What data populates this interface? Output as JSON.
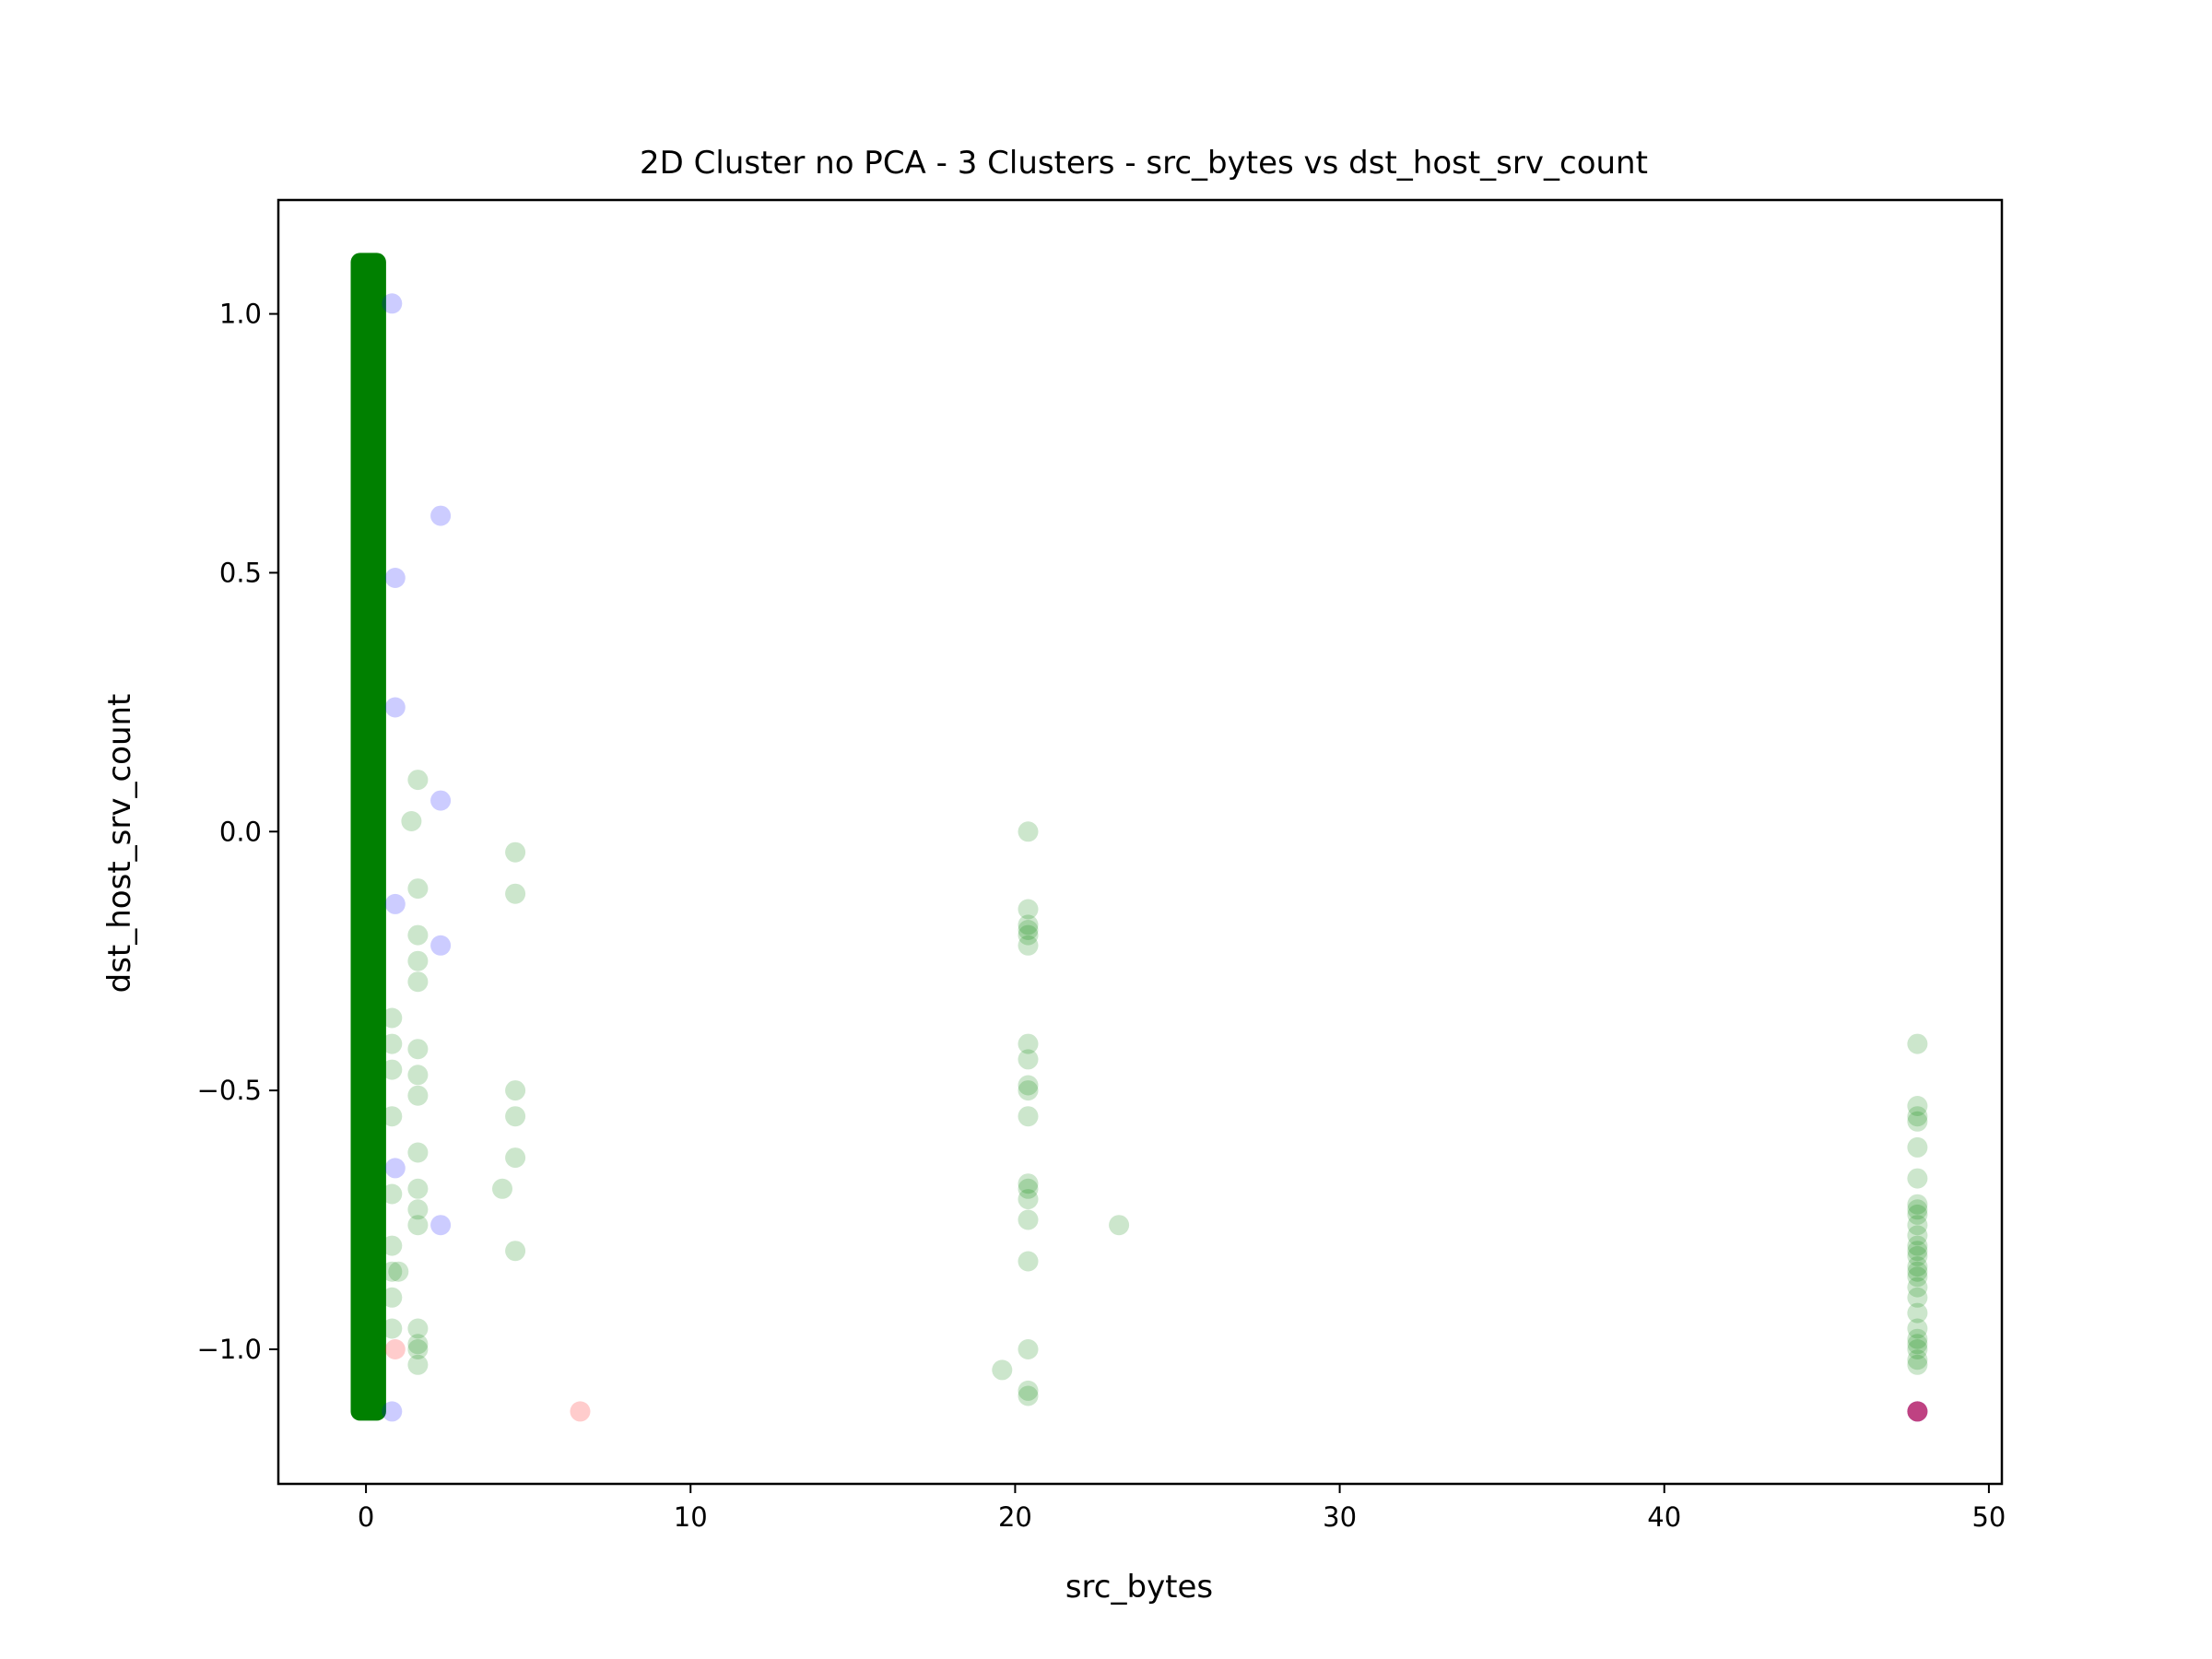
{
  "chart_data": {
    "type": "scatter",
    "title": "2D Cluster no PCA - 3 Clusters - src_bytes vs dst_host_srv_count",
    "xlabel": "src_bytes",
    "ylabel": "dst_host_srv_count",
    "xlim": [
      -2.7,
      50.4
    ],
    "ylim": [
      -1.26,
      1.22
    ],
    "xticks": [
      0,
      10,
      20,
      30,
      40,
      50
    ],
    "yticks": [
      -1.0,
      -0.5,
      0.0,
      0.5,
      1.0
    ],
    "xtick_labels": [
      "0",
      "10",
      "20",
      "30",
      "40",
      "50"
    ],
    "ytick_labels": [
      "−1.0",
      "−0.5",
      "0.0",
      "0.5",
      "1.0"
    ],
    "grid": false,
    "legend": "none",
    "series": [
      {
        "color": "#008000",
        "alpha": 0.2,
        "dense_band": {
          "x_min": -0.3,
          "x_max": 0.45,
          "y_min": -1.12,
          "y_max": 1.1
        },
        "points": [
          [
            0.8,
            -0.36
          ],
          [
            0.8,
            -0.41
          ],
          [
            0.8,
            -0.46
          ],
          [
            0.8,
            -0.55
          ],
          [
            0.8,
            -0.7
          ],
          [
            0.8,
            -0.8
          ],
          [
            0.8,
            -0.85
          ],
          [
            0.8,
            -0.9
          ],
          [
            1.0,
            -0.85
          ],
          [
            0.8,
            -0.96
          ],
          [
            1.6,
            0.1
          ],
          [
            1.4,
            0.02
          ],
          [
            1.6,
            -0.11
          ],
          [
            1.6,
            -0.2
          ],
          [
            1.6,
            -0.25
          ],
          [
            1.6,
            -0.29
          ],
          [
            1.6,
            -0.42
          ],
          [
            1.6,
            -0.47
          ],
          [
            1.6,
            -0.51
          ],
          [
            1.6,
            -0.62
          ],
          [
            1.6,
            -0.69
          ],
          [
            1.6,
            -0.73
          ],
          [
            1.6,
            -0.76
          ],
          [
            1.6,
            -0.96
          ],
          [
            1.6,
            -0.99
          ],
          [
            1.6,
            -1.0
          ],
          [
            1.6,
            -1.03
          ],
          [
            4.6,
            -0.04
          ],
          [
            4.6,
            -0.12
          ],
          [
            4.6,
            -0.5
          ],
          [
            4.6,
            -0.55
          ],
          [
            4.6,
            -0.63
          ],
          [
            4.6,
            -0.81
          ],
          [
            4.2,
            -0.69
          ],
          [
            20.4,
            0.0
          ],
          [
            20.4,
            -0.15
          ],
          [
            20.4,
            -0.18
          ],
          [
            20.4,
            -0.19
          ],
          [
            20.4,
            -0.2
          ],
          [
            20.4,
            -0.22
          ],
          [
            20.4,
            -0.41
          ],
          [
            20.4,
            -0.44
          ],
          [
            20.4,
            -0.49
          ],
          [
            20.4,
            -0.5
          ],
          [
            20.4,
            -0.55
          ],
          [
            20.4,
            -0.68
          ],
          [
            20.4,
            -0.69
          ],
          [
            20.4,
            -0.71
          ],
          [
            20.4,
            -0.75
          ],
          [
            20.4,
            -0.83
          ],
          [
            20.4,
            -1.0
          ],
          [
            20.4,
            -1.08
          ],
          [
            20.4,
            -1.09
          ],
          [
            19.6,
            -1.04
          ],
          [
            23.2,
            -0.76
          ],
          [
            47.8,
            -0.41
          ],
          [
            47.8,
            -0.53
          ],
          [
            47.8,
            -0.55
          ],
          [
            47.8,
            -0.56
          ],
          [
            47.8,
            -0.61
          ],
          [
            47.8,
            -0.67
          ],
          [
            47.8,
            -0.72
          ],
          [
            47.8,
            -0.73
          ],
          [
            47.8,
            -0.74
          ],
          [
            47.8,
            -0.76
          ],
          [
            47.8,
            -0.78
          ],
          [
            47.8,
            -0.8
          ],
          [
            47.8,
            -0.81
          ],
          [
            47.8,
            -0.82
          ],
          [
            47.8,
            -0.84
          ],
          [
            47.8,
            -0.85
          ],
          [
            47.8,
            -0.86
          ],
          [
            47.8,
            -0.88
          ],
          [
            47.8,
            -0.9
          ],
          [
            47.8,
            -0.93
          ],
          [
            47.8,
            -0.96
          ],
          [
            47.8,
            -0.98
          ],
          [
            47.8,
            -0.99
          ],
          [
            47.8,
            -1.0
          ],
          [
            47.8,
            -1.02
          ],
          [
            47.8,
            -1.03
          ]
        ]
      },
      {
        "color": "#0000ff",
        "alpha": 0.2,
        "points": [
          [
            0.8,
            1.02
          ],
          [
            2.3,
            0.61
          ],
          [
            0.9,
            0.49
          ],
          [
            0.9,
            0.24
          ],
          [
            2.3,
            0.06
          ],
          [
            0.9,
            -0.14
          ],
          [
            2.3,
            -0.22
          ],
          [
            0.9,
            -0.65
          ],
          [
            2.3,
            -0.76
          ],
          [
            0.8,
            -1.12
          ],
          [
            47.8,
            -1.12
          ],
          [
            47.8,
            -1.12
          ],
          [
            47.8,
            -1.12
          ]
        ]
      },
      {
        "color": "#ff0000",
        "alpha": 0.2,
        "points": [
          [
            6.6,
            -1.12
          ],
          [
            0.9,
            -1.0
          ],
          [
            47.8,
            -1.12
          ],
          [
            47.8,
            -1.12
          ],
          [
            47.8,
            -1.12
          ]
        ]
      }
    ]
  }
}
